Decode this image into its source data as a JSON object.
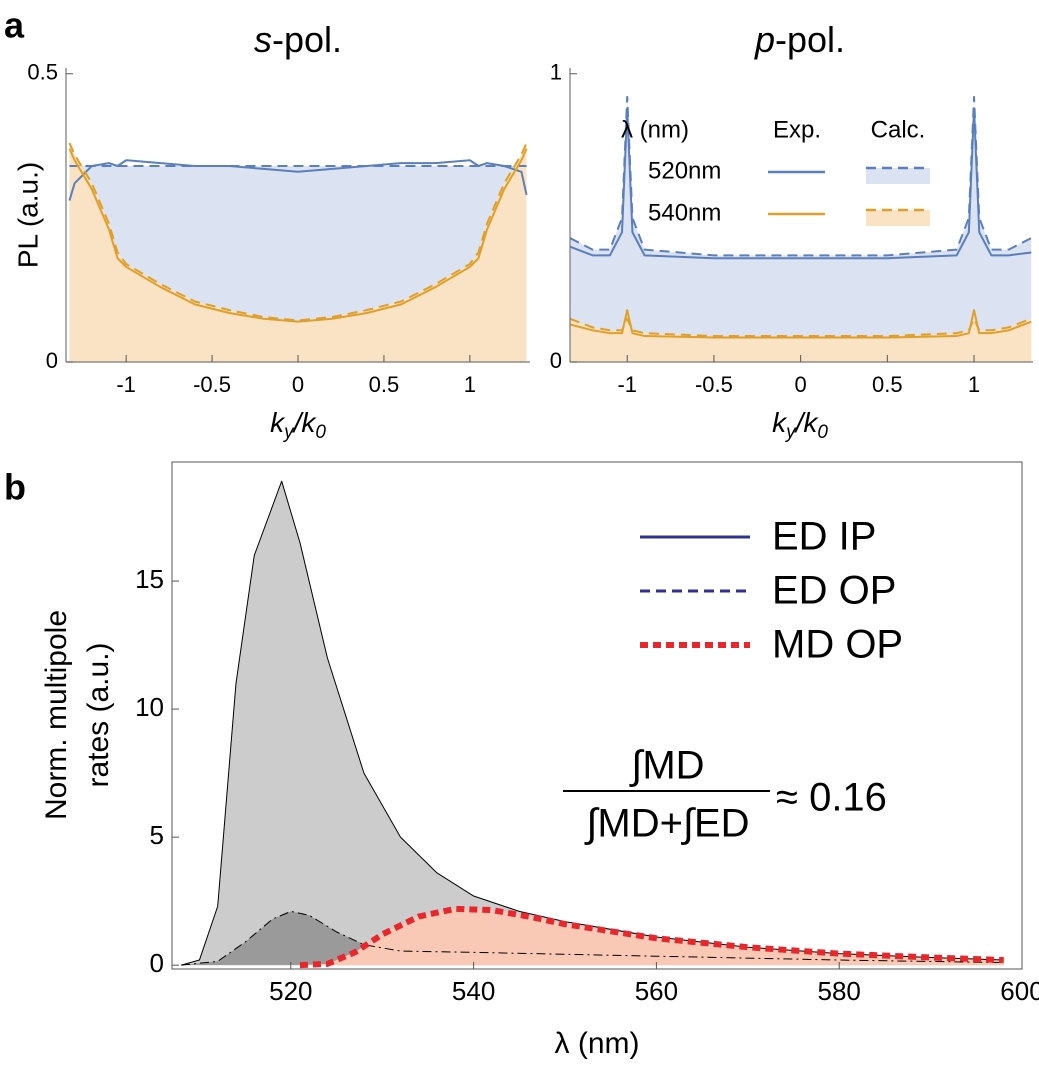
{
  "chart_data": [
    {
      "type": "line",
      "panel": "a",
      "title": {
        "italic": "s",
        "text": "-pol."
      },
      "xlabel": [
        {
          "text": "k"
        },
        {
          "text": "y",
          "sub": true
        },
        {
          "text": "/"
        },
        {
          "text": "k"
        },
        {
          "text": "0",
          "sub": true
        }
      ],
      "ylabel": "PL (a.u.)",
      "x": [
        -1.33,
        -1.3,
        -1.2,
        -1.1,
        -1.05,
        -1,
        -0.8,
        -0.6,
        -0.4,
        -0.2,
        0,
        0.2,
        0.4,
        0.6,
        0.8,
        1,
        1.05,
        1.1,
        1.2,
        1.3,
        1.33
      ],
      "xlim": [
        -1.35,
        1.35
      ],
      "xticks": [
        -1,
        -0.5,
        0,
        0.5,
        1
      ],
      "ylim": [
        0,
        0.51
      ],
      "yticks": [
        0,
        0.5
      ],
      "series": [
        {
          "color": "#5b7fbc",
          "dash": "solid",
          "values": [
            0.28,
            0.31,
            0.34,
            0.345,
            0.34,
            0.35,
            0.345,
            0.34,
            0.34,
            0.335,
            0.33,
            0.335,
            0.34,
            0.345,
            0.345,
            0.35,
            0.34,
            0.345,
            0.34,
            0.33,
            0.29
          ]
        },
        {
          "color": "#5b7fbc",
          "dash": "dashed",
          "fill": "#dbe2f1",
          "values": [
            0.34,
            0.34,
            0.34,
            0.34,
            0.34,
            0.34,
            0.34,
            0.34,
            0.34,
            0.34,
            0.34,
            0.34,
            0.34,
            0.34,
            0.34,
            0.34,
            0.34,
            0.34,
            0.34,
            0.34,
            0.34
          ]
        },
        {
          "color": "#e09f2a",
          "dash": "solid",
          "values": [
            0.37,
            0.35,
            0.3,
            0.23,
            0.18,
            0.165,
            0.13,
            0.1,
            0.085,
            0.075,
            0.07,
            0.075,
            0.085,
            0.1,
            0.13,
            0.165,
            0.18,
            0.23,
            0.3,
            0.35,
            0.37
          ]
        },
        {
          "color": "#e09f2a",
          "dash": "dashed",
          "fill": "#f9e3c4",
          "values": [
            0.38,
            0.36,
            0.31,
            0.24,
            0.19,
            0.17,
            0.135,
            0.105,
            0.09,
            0.078,
            0.072,
            0.078,
            0.09,
            0.105,
            0.135,
            0.17,
            0.19,
            0.24,
            0.31,
            0.36,
            0.38
          ]
        }
      ]
    },
    {
      "type": "line",
      "title": {
        "italic": "p",
        "text": "-pol."
      },
      "xlabel": [
        {
          "text": "k"
        },
        {
          "text": "y",
          "sub": true
        },
        {
          "text": "/"
        },
        {
          "text": "k"
        },
        {
          "text": "0",
          "sub": true
        }
      ],
      "x": [
        -1.33,
        -1.2,
        -1.1,
        -1.03,
        -1,
        -0.97,
        -0.9,
        -0.5,
        0,
        0.5,
        0.9,
        0.97,
        1,
        1.03,
        1.1,
        1.2,
        1.33
      ],
      "xlim": [
        -1.33,
        1.34
      ],
      "xticks": [
        -1,
        -0.5,
        0,
        0.5,
        1
      ],
      "ylim": [
        0,
        1.02
      ],
      "yticks": [
        0,
        1
      ],
      "legend": {
        "title": "λ (nm)",
        "columns": [
          "Exp.",
          "Calc."
        ],
        "rows": [
          "520nm",
          "540nm"
        ]
      },
      "series": [
        {
          "color": "#5b7fbc",
          "dash": "solid",
          "values": [
            0.4,
            0.37,
            0.37,
            0.45,
            0.88,
            0.45,
            0.37,
            0.36,
            0.36,
            0.36,
            0.37,
            0.45,
            0.88,
            0.45,
            0.37,
            0.37,
            0.38
          ]
        },
        {
          "color": "#5b7fbc",
          "dash": "dashed",
          "fill": "#dbe2f1",
          "values": [
            0.43,
            0.39,
            0.39,
            0.5,
            0.92,
            0.5,
            0.39,
            0.37,
            0.37,
            0.37,
            0.39,
            0.5,
            0.92,
            0.5,
            0.39,
            0.39,
            0.43
          ]
        },
        {
          "color": "#e09f2a",
          "dash": "solid",
          "values": [
            0.13,
            0.11,
            0.1,
            0.1,
            0.18,
            0.1,
            0.09,
            0.085,
            0.085,
            0.085,
            0.09,
            0.1,
            0.18,
            0.1,
            0.1,
            0.11,
            0.14
          ]
        },
        {
          "color": "#e09f2a",
          "dash": "dashed",
          "fill": "#f9e3c4",
          "values": [
            0.15,
            0.12,
            0.11,
            0.11,
            0.15,
            0.11,
            0.1,
            0.09,
            0.09,
            0.09,
            0.1,
            0.11,
            0.15,
            0.11,
            0.11,
            0.12,
            0.15
          ]
        }
      ]
    },
    {
      "type": "line",
      "panel": "b",
      "xlabel": "λ (nm)",
      "ylabel": [
        "Norm. multipole",
        "rates (a.u.)"
      ],
      "xlim": [
        507,
        600
      ],
      "xticks": [
        520,
        540,
        560,
        580,
        600
      ],
      "ylim": [
        -0.15,
        19.65
      ],
      "yticks": [
        0,
        5,
        10,
        15
      ],
      "legend_location": "upper right",
      "annotation": {
        "numerator": "∫MD",
        "denominator": "∫MD+∫ED",
        "result": "≈ 0.16"
      },
      "series": [
        {
          "name": "ED IP",
          "color": "#2e3192",
          "line_color": "#000000",
          "dash": "solid",
          "fill": "#cccccc",
          "x": [
            508,
            510,
            512,
            514,
            516,
            519,
            521,
            524,
            528,
            532,
            536,
            540,
            545,
            550,
            560,
            570,
            580,
            590,
            598
          ],
          "values": [
            0,
            0.2,
            2.3,
            11,
            16,
            18.9,
            16.5,
            12,
            7.5,
            5,
            3.6,
            2.7,
            2.1,
            1.7,
            1.1,
            0.7,
            0.45,
            0.3,
            0.2
          ]
        },
        {
          "name": "ED OP",
          "color": "#2e3192",
          "line_color": "#000000",
          "dash": "dashed",
          "line_dash": "dashdot",
          "fill": "#9a9a9a",
          "x": [
            508,
            512,
            515,
            518,
            520,
            522,
            525,
            528,
            532,
            540,
            560,
            580,
            598
          ],
          "values": [
            0,
            0.15,
            0.9,
            1.8,
            2.1,
            1.95,
            1.3,
            0.8,
            0.55,
            0.5,
            0.35,
            0.2,
            0.1
          ]
        },
        {
          "name": "MD OP",
          "color": "#e8262b",
          "dash": "dotted",
          "width": 6,
          "fill": "#f9c9b5",
          "x": [
            521,
            524,
            527,
            530,
            534,
            538,
            542,
            546,
            550,
            560,
            570,
            580,
            590,
            598
          ],
          "values": [
            0,
            0.05,
            0.5,
            1.2,
            1.9,
            2.2,
            2.15,
            1.9,
            1.6,
            1.05,
            0.7,
            0.45,
            0.3,
            0.2
          ]
        }
      ]
    }
  ]
}
